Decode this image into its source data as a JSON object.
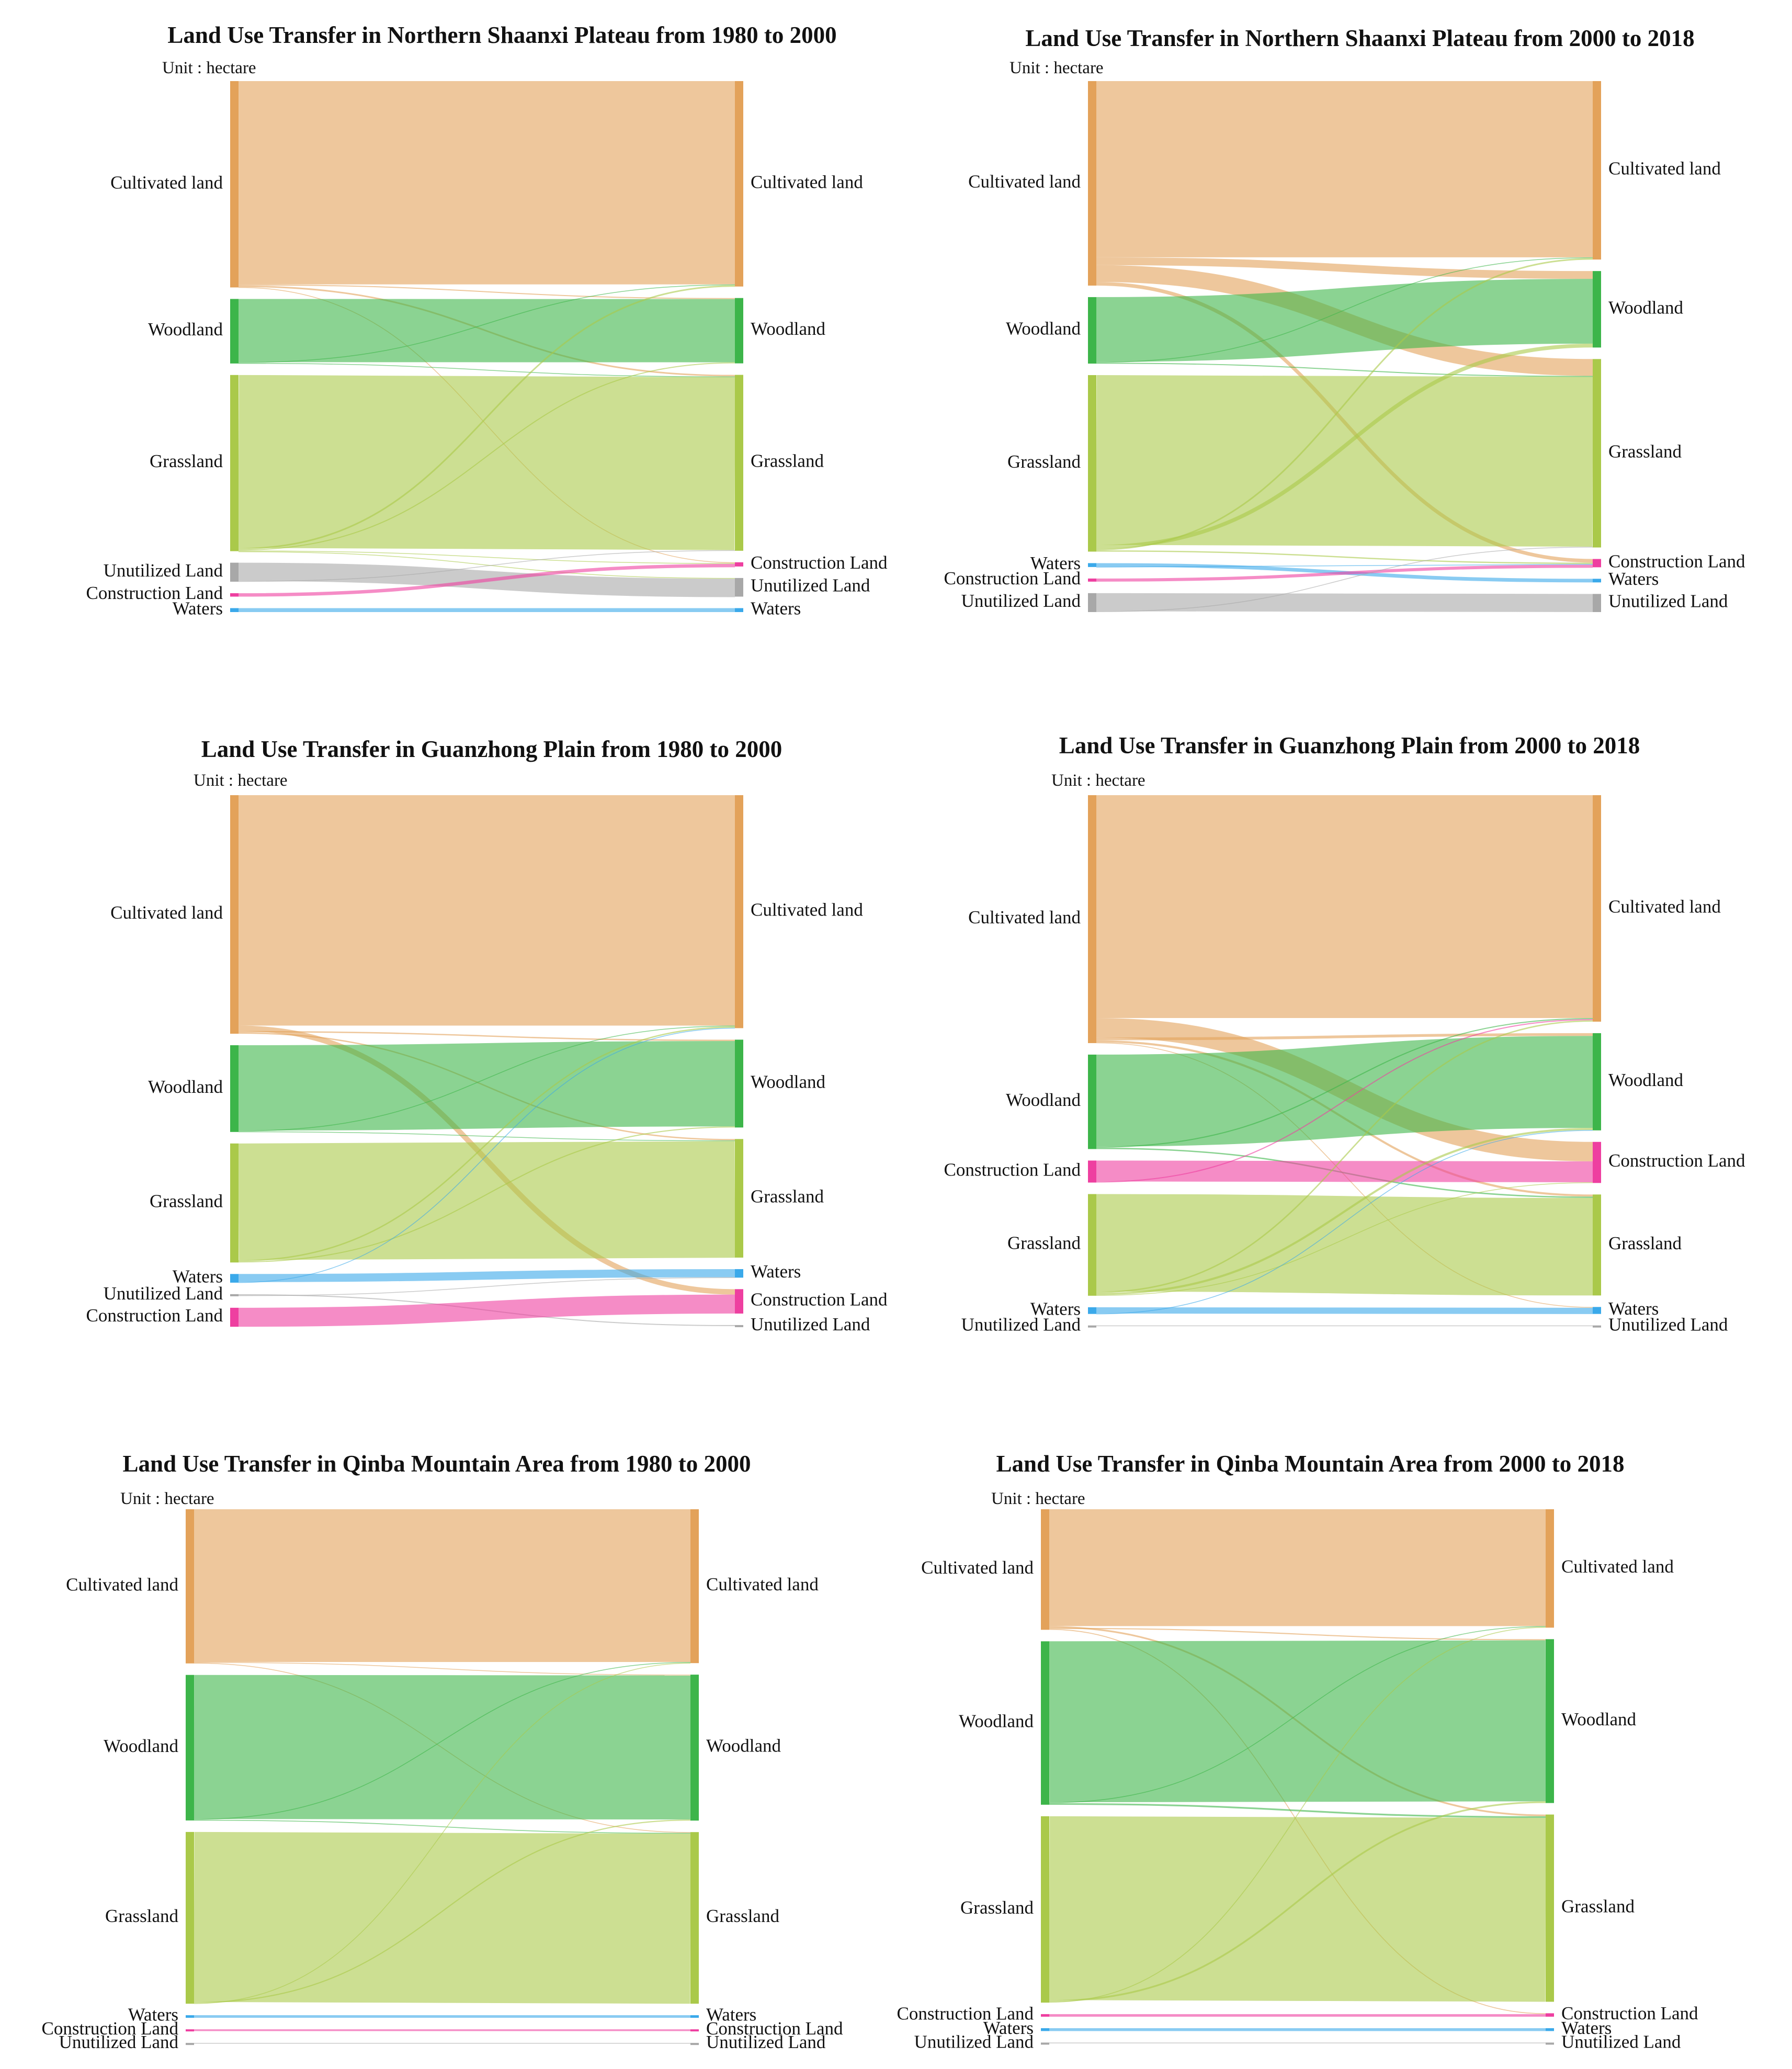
{
  "figure": {
    "unit_label": "Unit : hectare"
  },
  "colors": {
    "Cultivated land": "#e3a25a",
    "Woodland": "#3db54a",
    "Grassland": "#aac94a",
    "Unutilized Land": "#a8a8a8",
    "Construction Land": "#ee3fa0",
    "Waters": "#3aa9ea",
    "link_alpha": 0.6
  },
  "chart_data": [
    {
      "type": "sankey",
      "title": "Land Use Transfer in Northern Shaanxi Plateau from 1980 to 2000",
      "unit": "Unit : hectare",
      "source_nodes": [
        "Cultivated land",
        "Woodland",
        "Grassland",
        "Unutilized Land",
        "Construction Land",
        "Waters"
      ],
      "target_nodes": [
        "Cultivated land",
        "Woodland",
        "Grassland",
        "Construction Land",
        "Unutilized Land",
        "Waters"
      ],
      "links": [
        [
          "Cultivated land",
          "Cultivated land",
          1550
        ],
        [
          "Cultivated land",
          "Woodland",
          8
        ],
        [
          "Cultivated land",
          "Grassland",
          12
        ],
        [
          "Cultivated land",
          "Construction Land",
          3
        ],
        [
          "Woodland",
          "Woodland",
          482
        ],
        [
          "Woodland",
          "Cultivated land",
          4
        ],
        [
          "Woodland",
          "Grassland",
          6
        ],
        [
          "Grassland",
          "Grassland",
          1318
        ],
        [
          "Grassland",
          "Cultivated land",
          12
        ],
        [
          "Grassland",
          "Woodland",
          8
        ],
        [
          "Grassland",
          "Construction Land",
          3
        ],
        [
          "Grassland",
          "Unutilized Land",
          2
        ],
        [
          "Unutilized Land",
          "Unutilized Land",
          140
        ],
        [
          "Unutilized Land",
          "Grassland",
          5
        ],
        [
          "Construction Land",
          "Construction Land",
          26
        ],
        [
          "Waters",
          "Waters",
          30
        ]
      ]
    },
    {
      "type": "sankey",
      "title": "Land Use Transfer in Northern Shaanxi Plateau from 2000 to 2018",
      "unit": "Unit : hectare",
      "source_nodes": [
        "Cultivated land",
        "Woodland",
        "Grassland",
        "Waters",
        "Construction Land",
        "Unutilized Land"
      ],
      "target_nodes": [
        "Cultivated land",
        "Woodland",
        "Grassland",
        "Construction Land",
        "Waters",
        "Unutilized Land"
      ],
      "links": [
        [
          "Cultivated land",
          "Cultivated land",
          1360
        ],
        [
          "Cultivated land",
          "Woodland",
          60
        ],
        [
          "Cultivated land",
          "Grassland",
          130
        ],
        [
          "Cultivated land",
          "Construction Land",
          28
        ],
        [
          "Woodland",
          "Woodland",
          500
        ],
        [
          "Woodland",
          "Cultivated land",
          5
        ],
        [
          "Woodland",
          "Grassland",
          8
        ],
        [
          "Grassland",
          "Grassland",
          1310
        ],
        [
          "Grassland",
          "Woodland",
          30
        ],
        [
          "Grassland",
          "Cultivated land",
          12
        ],
        [
          "Grassland",
          "Construction Land",
          10
        ],
        [
          "Waters",
          "Waters",
          28
        ],
        [
          "Waters",
          "Construction Land",
          2
        ],
        [
          "Construction Land",
          "Construction Land",
          24
        ],
        [
          "Unutilized Land",
          "Unutilized Land",
          140
        ],
        [
          "Unutilized Land",
          "Grassland",
          6
        ]
      ]
    },
    {
      "type": "sankey",
      "title": "Land Use Transfer in Guanzhong Plain from 1980 to 2000",
      "unit": "Unit : hectare",
      "source_nodes": [
        "Cultivated land",
        "Woodland",
        "Grassland",
        "Waters",
        "Unutilized Land",
        "Construction Land"
      ],
      "target_nodes": [
        "Cultivated land",
        "Woodland",
        "Grassland",
        "Waters",
        "Construction Land",
        "Unutilized Land"
      ],
      "links": [
        [
          "Cultivated land",
          "Cultivated land",
          1700
        ],
        [
          "Cultivated land",
          "Construction Land",
          40
        ],
        [
          "Cultivated land",
          "Woodland",
          10
        ],
        [
          "Cultivated land",
          "Grassland",
          10
        ],
        [
          "Woodland",
          "Woodland",
          630
        ],
        [
          "Woodland",
          "Cultivated land",
          5
        ],
        [
          "Woodland",
          "Grassland",
          5
        ],
        [
          "Grassland",
          "Grassland",
          860
        ],
        [
          "Grassland",
          "Cultivated land",
          10
        ],
        [
          "Grassland",
          "Woodland",
          8
        ],
        [
          "Waters",
          "Waters",
          60
        ],
        [
          "Waters",
          "Cultivated land",
          4
        ],
        [
          "Unutilized Land",
          "Unutilized Land",
          8
        ],
        [
          "Unutilized Land",
          "Waters",
          3
        ],
        [
          "Construction Land",
          "Construction Land",
          140
        ]
      ]
    },
    {
      "type": "sankey",
      "title": "Land Use Transfer in Guanzhong Plain from 2000 to 2018",
      "unit": "Unit : hectare",
      "source_nodes": [
        "Cultivated land",
        "Woodland",
        "Construction Land",
        "Grassland",
        "Waters",
        "Unutilized Land"
      ],
      "target_nodes": [
        "Cultivated land",
        "Woodland",
        "Construction Land",
        "Grassland",
        "Waters",
        "Unutilized Land"
      ],
      "links": [
        [
          "Cultivated land",
          "Cultivated land",
          1600
        ],
        [
          "Cultivated land",
          "Construction Land",
          140
        ],
        [
          "Cultivated land",
          "Woodland",
          20
        ],
        [
          "Cultivated land",
          "Grassland",
          15
        ],
        [
          "Cultivated land",
          "Waters",
          5
        ],
        [
          "Woodland",
          "Woodland",
          660
        ],
        [
          "Woodland",
          "Cultivated land",
          8
        ],
        [
          "Woodland",
          "Grassland",
          10
        ],
        [
          "Construction Land",
          "Construction Land",
          150
        ],
        [
          "Construction Land",
          "Cultivated land",
          8
        ],
        [
          "Grassland",
          "Grassland",
          700
        ],
        [
          "Grassland",
          "Cultivated land",
          10
        ],
        [
          "Grassland",
          "Woodland",
          15
        ],
        [
          "Grassland",
          "Construction Land",
          5
        ],
        [
          "Waters",
          "Waters",
          45
        ],
        [
          "Waters",
          "Woodland",
          3
        ],
        [
          "Unutilized Land",
          "Unutilized Land",
          5
        ]
      ]
    },
    {
      "type": "sankey",
      "title": "Land Use Transfer in Qinba Mountain Area from 1980 to 2000",
      "unit": "Unit : hectare",
      "source_nodes": [
        "Cultivated land",
        "Woodland",
        "Grassland",
        "Waters",
        "Construction Land",
        "Unutilized Land"
      ],
      "target_nodes": [
        "Cultivated land",
        "Woodland",
        "Grassland",
        "Waters",
        "Construction Land",
        "Unutilized Land"
      ],
      "links": [
        [
          "Cultivated land",
          "Cultivated land",
          1060
        ],
        [
          "Cultivated land",
          "Woodland",
          5
        ],
        [
          "Cultivated land",
          "Grassland",
          5
        ],
        [
          "Woodland",
          "Woodland",
          1000
        ],
        [
          "Woodland",
          "Cultivated land",
          4
        ],
        [
          "Woodland",
          "Grassland",
          6
        ],
        [
          "Grassland",
          "Grassland",
          1180
        ],
        [
          "Grassland",
          "Woodland",
          8
        ],
        [
          "Grassland",
          "Cultivated land",
          4
        ],
        [
          "Waters",
          "Waters",
          18
        ],
        [
          "Construction Land",
          "Construction Land",
          12
        ],
        [
          "Unutilized Land",
          "Unutilized Land",
          2
        ]
      ]
    },
    {
      "type": "sankey",
      "title": "Land Use Transfer in Qinba Mountain Area from 2000 to 2018",
      "unit": "Unit : hectare",
      "source_nodes": [
        "Cultivated land",
        "Woodland",
        "Grassland",
        "Construction Land",
        "Waters",
        "Unutilized Land"
      ],
      "target_nodes": [
        "Cultivated land",
        "Woodland",
        "Grassland",
        "Construction Land",
        "Waters",
        "Unutilized Land"
      ],
      "links": [
        [
          "Cultivated land",
          "Cultivated land",
          820
        ],
        [
          "Cultivated land",
          "Grassland",
          12
        ],
        [
          "Cultivated land",
          "Woodland",
          8
        ],
        [
          "Cultivated land",
          "Construction Land",
          6
        ],
        [
          "Woodland",
          "Woodland",
          1130
        ],
        [
          "Woodland",
          "Cultivated land",
          5
        ],
        [
          "Woodland",
          "Grassland",
          12
        ],
        [
          "Grassland",
          "Grassland",
          1290
        ],
        [
          "Grassland",
          "Woodland",
          12
        ],
        [
          "Grassland",
          "Cultivated land",
          6
        ],
        [
          "Construction Land",
          "Construction Land",
          18
        ],
        [
          "Waters",
          "Waters",
          20
        ],
        [
          "Unutilized Land",
          "Unutilized Land",
          2
        ]
      ]
    }
  ]
}
